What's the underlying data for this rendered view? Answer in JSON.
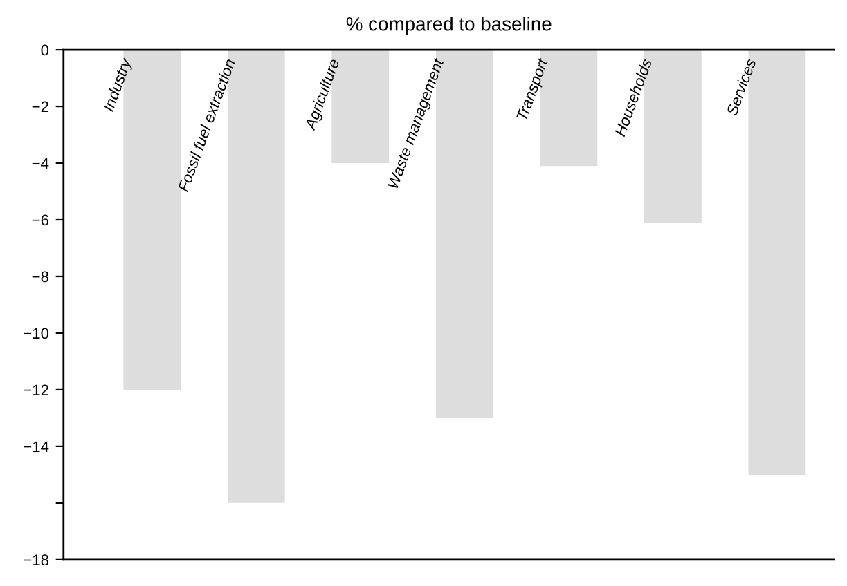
{
  "chart_data": {
    "type": "bar",
    "title": "% compared to baseline",
    "categories": [
      "Industry",
      "Fossil fuel extraction",
      "Agriculture",
      "Waste management",
      "Transport",
      "Households",
      "Services"
    ],
    "values": [
      -12,
      -16,
      -4,
      -13,
      -4.1,
      -6.1,
      -15
    ],
    "color": "#dddddd",
    "ylim": [
      -18,
      0
    ],
    "yticks": [
      0,
      -2,
      -4,
      -6,
      -8,
      -10,
      -12,
      -14,
      {
        "value": -16,
        "label": null
      },
      -18
    ],
    "grid": false
  }
}
